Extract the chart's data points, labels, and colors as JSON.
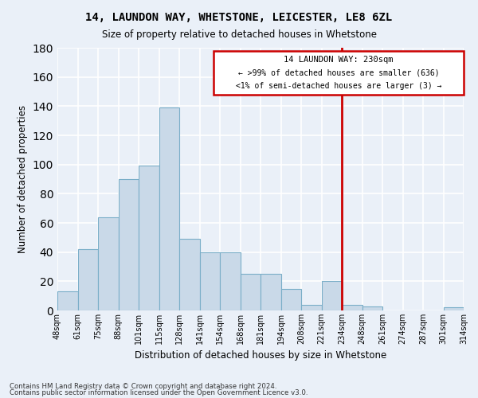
{
  "title": "14, LAUNDON WAY, WHETSTONE, LEICESTER, LE8 6ZL",
  "subtitle": "Size of property relative to detached houses in Whetstone",
  "xlabel": "Distribution of detached houses by size in Whetstone",
  "ylabel": "Number of detached properties",
  "bar_values": [
    13,
    42,
    64,
    90,
    99,
    139,
    49,
    40,
    40,
    25,
    25,
    15,
    4,
    20,
    4,
    3,
    0,
    0,
    0,
    2
  ],
  "bar_labels": [
    "48sqm",
    "61sqm",
    "75sqm",
    "88sqm",
    "101sqm",
    "115sqm",
    "128sqm",
    "141sqm",
    "154sqm",
    "168sqm",
    "181sqm",
    "194sqm",
    "208sqm",
    "221sqm",
    "234sqm",
    "248sqm",
    "261sqm",
    "274sqm",
    "287sqm",
    "301sqm",
    "314sqm"
  ],
  "bar_color": "#c9d9e8",
  "bar_edge_color": "#7aaec8",
  "background_color": "#eaf0f8",
  "grid_color": "#ffffff",
  "ylim": [
    0,
    180
  ],
  "yticks": [
    0,
    20,
    40,
    60,
    80,
    100,
    120,
    140,
    160,
    180
  ],
  "marker_line_color": "#cc0000",
  "annotation_line1": "14 LAUNDON WAY: 230sqm",
  "annotation_line2": "← >99% of detached houses are smaller (636)",
  "annotation_line3": "<1% of semi-detached houses are larger (3) →",
  "footer_line1": "Contains HM Land Registry data © Crown copyright and database right 2024.",
  "footer_line2": "Contains public sector information licensed under the Open Government Licence v3.0."
}
